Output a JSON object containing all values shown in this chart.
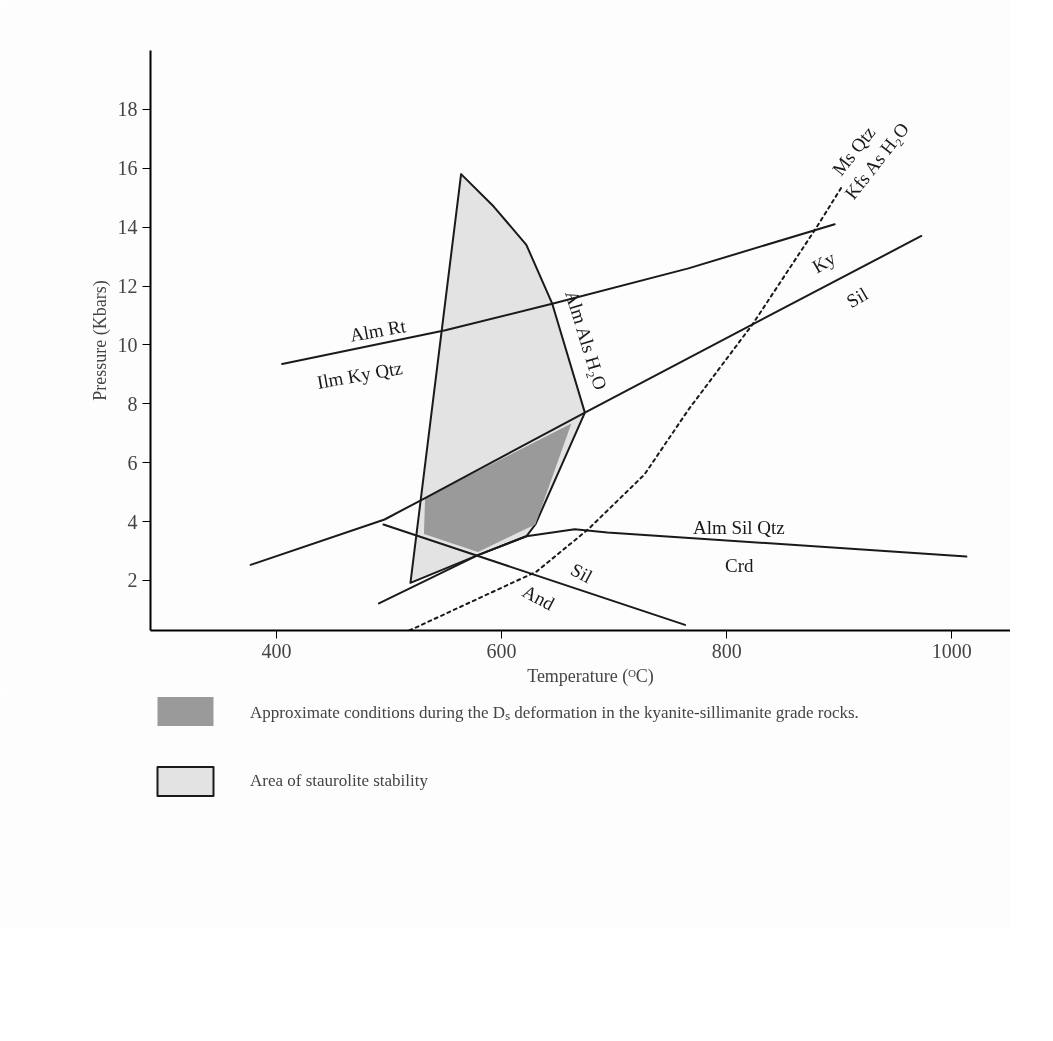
{
  "chart_data": {
    "type": "line",
    "xlabel": "Temperature (ᴼC)",
    "ylabel": "Pressure (Kbars)",
    "xlim": [
      288,
      1070
    ],
    "ylim": [
      0.3,
      20
    ],
    "xticks": [
      400,
      600,
      800,
      1000
    ],
    "yticks": [
      2,
      4,
      6,
      8,
      10,
      12,
      14,
      16,
      18
    ],
    "grid": false,
    "legend": "bottom",
    "marker": "none",
    "line_style": "solid",
    "series": [
      {
        "name": "Area of staurolite stability",
        "type": "area",
        "line_style": "solid",
        "color": "#e3e3e3",
        "x": [
          564,
          519,
          579,
          622,
          630,
          674,
          645,
          622,
          593
        ],
        "values": [
          15.8,
          1.92,
          2.86,
          3.5,
          3.9,
          7.7,
          11.4,
          13.4,
          14.7
        ]
      },
      {
        "name": "Approximate conditions during the Dₛ deformation in the kyanite-sillimanite grade rocks.",
        "type": "area",
        "color": "#9a9a9a",
        "x": [
          532,
          662,
          630,
          579,
          531
        ],
        "values": [
          4.8,
          7.33,
          3.9,
          2.97,
          3.58
        ]
      },
      {
        "color": "#1a1a1a",
        "x": [
          405,
          550,
          645,
          766,
          896
        ],
        "values": [
          9.35,
          10.5,
          11.4,
          12.6,
          14.1
        ]
      },
      {
        "color": "#1a1a1a",
        "x": [
          377,
          496,
          532,
          674,
          823,
          973
        ],
        "values": [
          2.53,
          4.07,
          4.8,
          7.7,
          10.7,
          13.7
        ]
      },
      {
        "color": "#1a1a1a",
        "x": [
          491,
          579,
          622,
          665,
          694,
          1013
        ],
        "values": [
          1.22,
          2.86,
          3.5,
          3.74,
          3.63,
          2.81
        ]
      },
      {
        "color": "#1a1a1a",
        "x": [
          495,
          763
        ],
        "values": [
          3.9,
          0.49
        ]
      },
      {
        "color": "#1a1a1a",
        "line_style": "dotted",
        "x": [
          518,
          631,
          677,
          727,
          766,
          823,
          880,
          902
        ],
        "values": [
          0.3,
          2.3,
          3.74,
          5.6,
          7.8,
          10.7,
          14.0,
          15.35
        ]
      }
    ],
    "annotations": [
      "Alm  Rt",
      "Ilm  Ky  Qtz",
      "Alm  Als  H₂O",
      "Ky",
      "Sil",
      "Ms Qtz",
      "Kfs  As  H₂O",
      "Alm  Sil  Qtz",
      "Crd",
      "Sil",
      "And"
    ]
  }
}
